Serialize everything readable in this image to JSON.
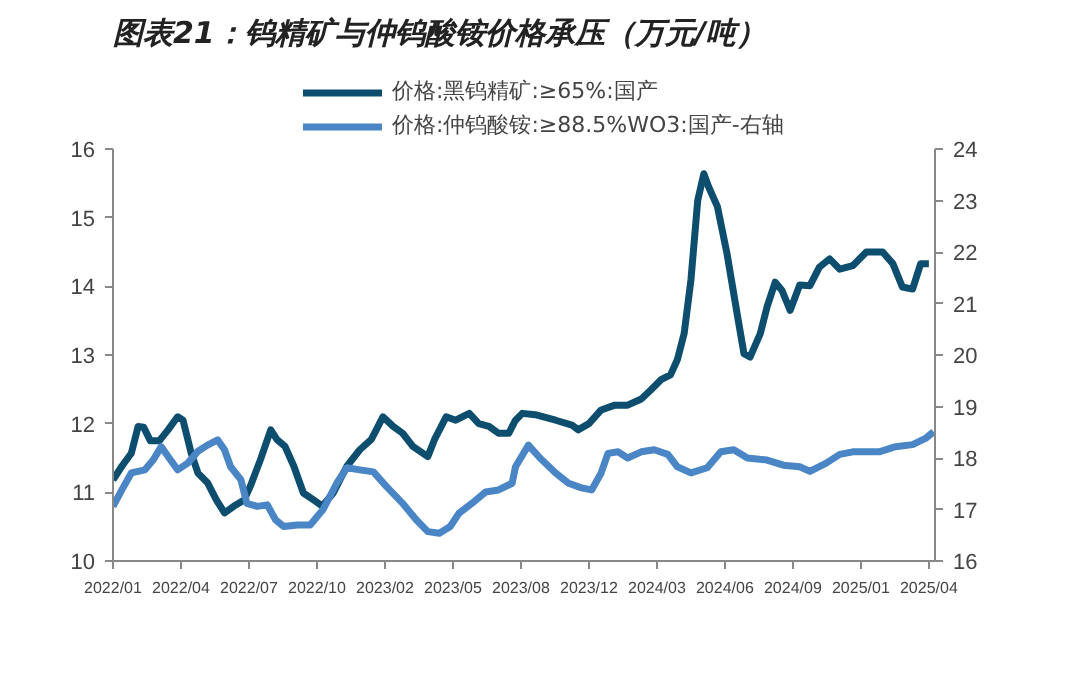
{
  "chart_data": {
    "type": "line",
    "title": "图表21：钨精矿与仲钨酸铵价格承压（万元/吨）",
    "xlim": [
      "2022-01-04",
      "2025-04-27"
    ],
    "xticks": [
      {
        "value": "2022-01-04",
        "label": "2022/01"
      },
      {
        "value": "2022-04-14",
        "label": "2022/04"
      },
      {
        "value": "2022-07-23",
        "label": "2022/07"
      },
      {
        "value": "2022-10-31",
        "label": "2022/10"
      },
      {
        "value": "2023-02-08",
        "label": "2023/02"
      },
      {
        "value": "2023-05-19",
        "label": "2023/05"
      },
      {
        "value": "2023-08-27",
        "label": "2023/08"
      },
      {
        "value": "2023-12-05",
        "label": "2023/12"
      },
      {
        "value": "2024-03-14",
        "label": "2024/03"
      },
      {
        "value": "2024-06-22",
        "label": "2024/06"
      },
      {
        "value": "2024-09-30",
        "label": "2024/09"
      },
      {
        "value": "2025-01-08",
        "label": "2025/01"
      },
      {
        "value": "2025-04-18",
        "label": "2025/04"
      }
    ],
    "ylim": [
      10,
      16
    ],
    "yticks": [
      10,
      11,
      12,
      13,
      14,
      15,
      16
    ],
    "y2lim": [
      16,
      24
    ],
    "y2ticks": [
      16,
      17,
      18,
      19,
      20,
      21,
      22,
      23,
      24
    ],
    "grid": false,
    "legend": "top",
    "line_style": "solid",
    "series": [
      {
        "name": "价格:黑钨精矿:≥65%:国产",
        "color": "#0d4e6f",
        "x": [
          "2022-01-04",
          "2022-01-17",
          "2022-01-31",
          "2022-02-10",
          "2022-02-18",
          "2022-02-28",
          "2022-03-13",
          "2022-03-26",
          "2022-04-09",
          "2022-04-17",
          "2022-04-29",
          "2022-05-09",
          "2022-05-23",
          "2022-06-05",
          "2022-06-17",
          "2022-07-01",
          "2022-07-16",
          "2022-07-25",
          "2022-08-09",
          "2022-08-24",
          "2022-09-02",
          "2022-09-14",
          "2022-09-27",
          "2022-10-11",
          "2022-10-26",
          "2022-11-08",
          "2022-11-24",
          "2022-12-14",
          "2023-01-02",
          "2023-01-19",
          "2023-02-05",
          "2023-02-20",
          "2023-03-06",
          "2023-03-21",
          "2023-04-12",
          "2023-04-22",
          "2023-05-09",
          "2023-05-23",
          "2023-06-12",
          "2023-06-26",
          "2023-07-11",
          "2023-07-25",
          "2023-08-09",
          "2023-08-19",
          "2023-08-29",
          "2023-09-17",
          "2023-10-17",
          "2023-11-10",
          "2023-11-19",
          "2023-12-05",
          "2023-12-23",
          "2024-01-12",
          "2024-01-31",
          "2024-02-20",
          "2024-03-05",
          "2024-03-20",
          "2024-04-03",
          "2024-04-13",
          "2024-04-23",
          "2024-05-03",
          "2024-05-13",
          "2024-05-22",
          "2024-05-29",
          "2024-06-11",
          "2024-06-25",
          "2024-07-10",
          "2024-07-20",
          "2024-07-29",
          "2024-08-13",
          "2024-08-23",
          "2024-09-04",
          "2024-09-14",
          "2024-09-26",
          "2024-10-10",
          "2024-10-25",
          "2024-11-08",
          "2024-11-23",
          "2024-12-08",
          "2024-12-27",
          "2025-01-16",
          "2025-02-09",
          "2025-02-24",
          "2025-03-10",
          "2025-03-25",
          "2025-04-06",
          "2025-04-18"
        ],
        "values": [
          11.18,
          11.38,
          11.57,
          11.96,
          11.95,
          11.75,
          11.75,
          11.91,
          12.1,
          12.05,
          11.57,
          11.28,
          11.14,
          10.89,
          10.7,
          10.8,
          10.89,
          11.09,
          11.48,
          11.91,
          11.77,
          11.67,
          11.38,
          10.99,
          10.89,
          10.8,
          10.99,
          11.38,
          11.62,
          11.77,
          12.1,
          11.96,
          11.86,
          11.67,
          11.52,
          11.77,
          12.1,
          12.05,
          12.15,
          12.0,
          11.96,
          11.86,
          11.86,
          12.05,
          12.15,
          12.13,
          12.05,
          11.98,
          11.91,
          12.0,
          12.2,
          12.27,
          12.27,
          12.36,
          12.49,
          12.64,
          12.71,
          12.93,
          13.31,
          14.09,
          15.25,
          15.64,
          15.45,
          15.16,
          14.48,
          13.6,
          13.02,
          12.97,
          13.31,
          13.7,
          14.06,
          13.94,
          13.65,
          14.02,
          14.01,
          14.28,
          14.4,
          14.25,
          14.3,
          14.5,
          14.5,
          14.33,
          13.99,
          13.96,
          14.33,
          14.33
        ]
      },
      {
        "name": "价格:仲钨酸铵:≥88.5%WO3:国产-右轴",
        "color": "#4a86c5",
        "axis": "y2",
        "x": [
          "2022-01-04",
          "2022-01-17",
          "2022-01-31",
          "2022-02-20",
          "2022-03-04",
          "2022-03-16",
          "2022-03-26",
          "2022-04-09",
          "2022-04-24",
          "2022-05-09",
          "2022-05-23",
          "2022-06-07",
          "2022-06-17",
          "2022-06-26",
          "2022-07-11",
          "2022-07-20",
          "2022-08-04",
          "2022-08-19",
          "2022-08-31",
          "2022-09-12",
          "2022-10-02",
          "2022-10-21",
          "2022-11-09",
          "2022-11-29",
          "2022-12-14",
          "2023-01-02",
          "2023-01-22",
          "2023-02-10",
          "2023-03-06",
          "2023-03-26",
          "2023-04-12",
          "2023-04-29",
          "2023-05-15",
          "2023-05-28",
          "2023-06-16",
          "2023-07-06",
          "2023-07-25",
          "2023-08-14",
          "2023-08-19",
          "2023-09-07",
          "2023-09-24",
          "2023-10-17",
          "2023-11-05",
          "2023-11-24",
          "2023-12-09",
          "2023-12-23",
          "2024-01-02",
          "2024-01-17",
          "2024-01-31",
          "2024-02-20",
          "2024-03-10",
          "2024-03-30",
          "2024-04-13",
          "2024-05-03",
          "2024-05-27",
          "2024-06-16",
          "2024-07-05",
          "2024-07-25",
          "2024-08-23",
          "2024-09-16",
          "2024-10-10",
          "2024-10-25",
          "2024-11-18",
          "2024-12-08",
          "2024-12-27",
          "2025-02-04",
          "2025-02-28",
          "2025-03-25",
          "2025-04-13",
          "2025-04-25"
        ],
        "values": [
          17.06,
          17.38,
          17.71,
          17.77,
          17.96,
          18.22,
          18.03,
          17.77,
          17.9,
          18.13,
          18.25,
          18.35,
          18.16,
          17.83,
          17.58,
          17.12,
          17.06,
          17.09,
          16.8,
          16.67,
          16.7,
          16.7,
          17.0,
          17.51,
          17.81,
          17.77,
          17.73,
          17.45,
          17.12,
          16.8,
          16.57,
          16.54,
          16.67,
          16.93,
          17.12,
          17.34,
          17.38,
          17.51,
          17.83,
          18.25,
          18.0,
          17.71,
          17.51,
          17.42,
          17.38,
          17.71,
          18.09,
          18.12,
          18.0,
          18.12,
          18.16,
          18.07,
          17.83,
          17.71,
          17.81,
          18.12,
          18.16,
          18.0,
          17.96,
          17.86,
          17.83,
          17.74,
          17.9,
          18.07,
          18.12,
          18.12,
          18.22,
          18.26,
          18.38,
          18.51
        ]
      }
    ]
  }
}
